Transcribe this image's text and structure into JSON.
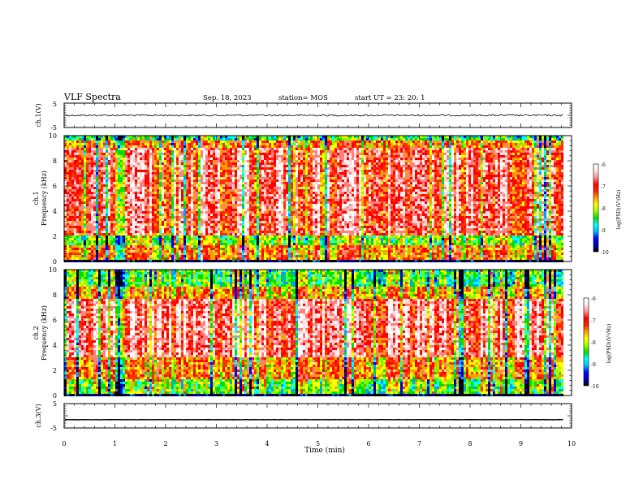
{
  "header": {
    "title": "VLF Spectra",
    "date": "Sep. 18, 2023",
    "station": "station= MOS",
    "start": "start UT =   23: 20: 1"
  },
  "colors": {
    "palette": [
      "#000000",
      "#0000b0",
      "#0000ff",
      "#00a0ff",
      "#00ffff",
      "#00e000",
      "#80ff00",
      "#ffff00",
      "#ffa000",
      "#ff3000",
      "#ff0000",
      "#ff8080",
      "#ffd8d8",
      "#ffffff"
    ]
  },
  "chart_data": [
    {
      "type": "line",
      "panel": "ch1",
      "ylabel": "ch.1(V)",
      "ylim": [
        -5,
        5
      ],
      "yticks": [
        "5",
        "-5"
      ],
      "xlim": [
        0,
        10
      ],
      "series": [
        {
          "values_constant": 0
        }
      ]
    },
    {
      "type": "heatmap",
      "panel": "ch1-spectrogram",
      "ylabel": "ch.1\nFrequency (kHz)",
      "ylabel_lines": [
        "ch.1",
        "Frequency (kHz)"
      ],
      "ylim": [
        0,
        10
      ],
      "yticks": [
        "0",
        "2",
        "4",
        "6",
        "8",
        "10"
      ],
      "xlim": [
        0,
        10
      ],
      "colorbar": {
        "label": "log(PSD)(V²/Hz)",
        "range": [
          -10,
          -6
        ],
        "ticks": [
          "-6",
          "-7",
          "-8",
          "-9",
          "-10"
        ]
      }
    },
    {
      "type": "heatmap",
      "panel": "ch2-spectrogram",
      "ylabel": "ch.2\nFrequency (kHz)",
      "ylabel_lines": [
        "ch.2",
        "Frequency (kHz)"
      ],
      "ylim": [
        0,
        10
      ],
      "yticks": [
        "0",
        "2",
        "4",
        "6",
        "8",
        "10"
      ],
      "xlim": [
        0,
        10
      ],
      "colorbar": {
        "label": "log(PSD)(V²/Hz)",
        "range": [
          -10,
          -6
        ],
        "ticks": [
          "-6",
          "-7",
          "-8",
          "-9",
          "-10"
        ]
      }
    },
    {
      "type": "line",
      "panel": "ch3",
      "ylabel": "ch.3(V)",
      "ylim": [
        -5,
        5
      ],
      "yticks": [
        "5",
        "-5"
      ],
      "xlim": [
        0,
        10
      ],
      "xticks": [
        "0",
        "1",
        "2",
        "3",
        "4",
        "5",
        "6",
        "7",
        "8",
        "9",
        "10"
      ],
      "xlabel": "Time (min)",
      "series": [
        {
          "values_constant": -1.6
        }
      ]
    }
  ]
}
